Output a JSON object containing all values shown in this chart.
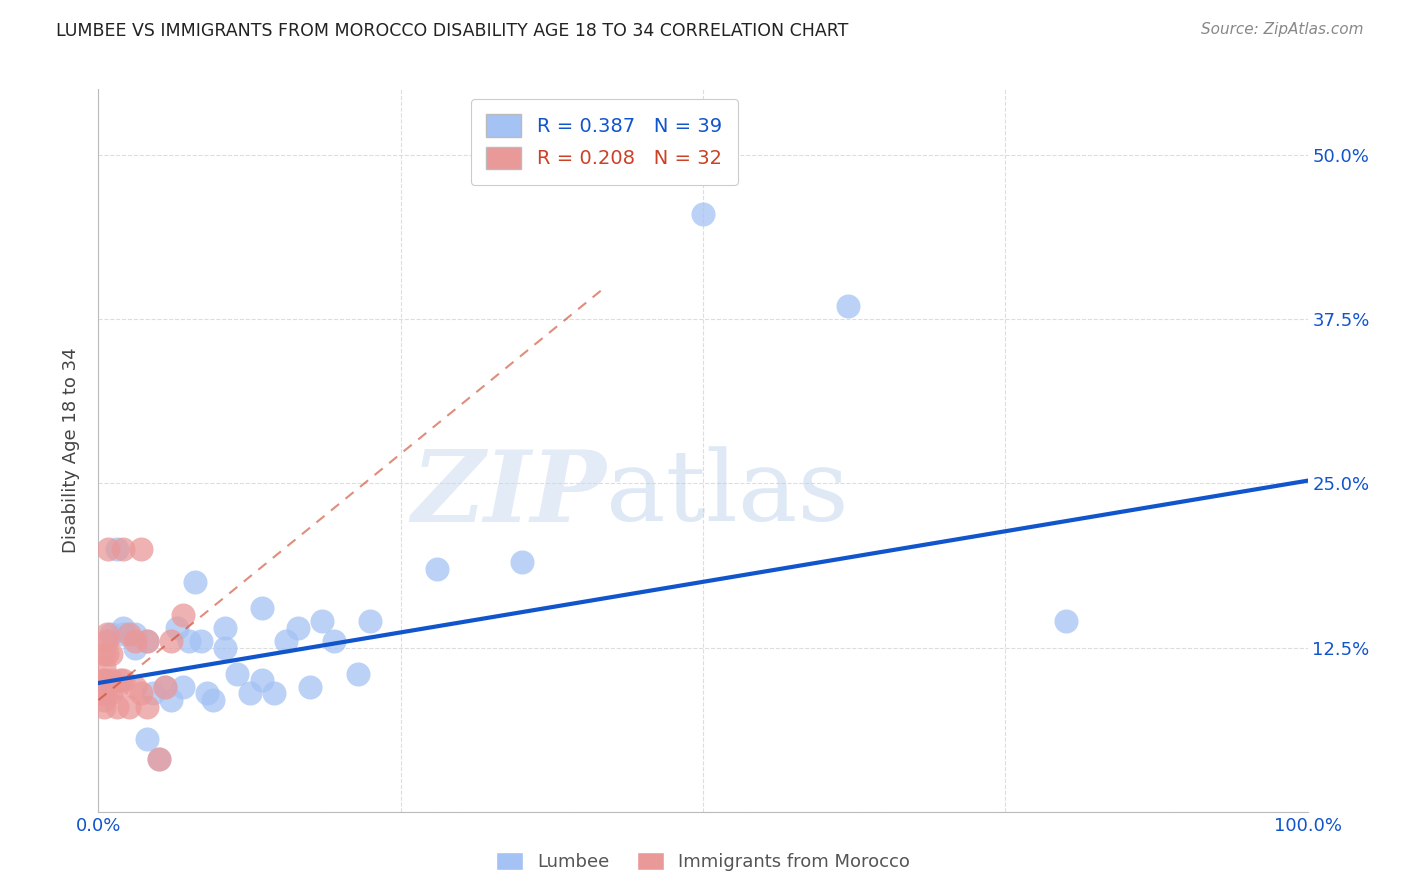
{
  "title": "LUMBEE VS IMMIGRANTS FROM MOROCCO DISABILITY AGE 18 TO 34 CORRELATION CHART",
  "source": "Source: ZipAtlas.com",
  "ylabel": "Disability Age 18 to 34",
  "xlim": [
    0,
    1.0
  ],
  "ylim": [
    0,
    0.55
  ],
  "xticks": [
    0.0,
    0.25,
    0.5,
    0.75,
    1.0
  ],
  "xticklabels": [
    "0.0%",
    "",
    "",
    "",
    "100.0%"
  ],
  "yticks": [
    0.0,
    0.125,
    0.25,
    0.375,
    0.5
  ],
  "yticklabels": [
    "",
    "12.5%",
    "25.0%",
    "37.5%",
    "50.0%"
  ],
  "lumbee_R": 0.387,
  "lumbee_N": 39,
  "morocco_R": 0.208,
  "morocco_N": 32,
  "lumbee_color": "#a4c2f4",
  "morocco_color": "#ea9999",
  "lumbee_line_color": "#1155cc",
  "morocco_line_color": "#cc4125",
  "tick_color": "#1155cc",
  "lumbee_scatter_x": [
    0.5,
    0.62,
    0.8,
    0.35,
    0.28,
    0.225,
    0.215,
    0.195,
    0.185,
    0.175,
    0.165,
    0.155,
    0.145,
    0.135,
    0.135,
    0.125,
    0.115,
    0.105,
    0.105,
    0.095,
    0.09,
    0.085,
    0.08,
    0.075,
    0.07,
    0.065,
    0.06,
    0.055,
    0.05,
    0.045,
    0.04,
    0.04,
    0.03,
    0.03,
    0.02,
    0.02,
    0.015,
    0.01,
    0.005
  ],
  "lumbee_scatter_y": [
    0.455,
    0.385,
    0.145,
    0.19,
    0.185,
    0.145,
    0.105,
    0.13,
    0.145,
    0.095,
    0.14,
    0.13,
    0.09,
    0.1,
    0.155,
    0.09,
    0.105,
    0.14,
    0.125,
    0.085,
    0.09,
    0.13,
    0.175,
    0.13,
    0.095,
    0.14,
    0.085,
    0.095,
    0.04,
    0.09,
    0.055,
    0.13,
    0.135,
    0.125,
    0.135,
    0.14,
    0.2,
    0.135,
    0.09
  ],
  "morocco_scatter_x": [
    0.005,
    0.005,
    0.005,
    0.005,
    0.005,
    0.005,
    0.005,
    0.005,
    0.007,
    0.007,
    0.007,
    0.008,
    0.01,
    0.01,
    0.01,
    0.015,
    0.015,
    0.018,
    0.02,
    0.02,
    0.025,
    0.025,
    0.03,
    0.03,
    0.035,
    0.035,
    0.04,
    0.04,
    0.05,
    0.055,
    0.06,
    0.07
  ],
  "morocco_scatter_y": [
    0.08,
    0.085,
    0.09,
    0.09,
    0.1,
    0.1,
    0.11,
    0.12,
    0.12,
    0.13,
    0.135,
    0.2,
    0.09,
    0.1,
    0.12,
    0.08,
    0.095,
    0.1,
    0.1,
    0.2,
    0.08,
    0.135,
    0.095,
    0.13,
    0.09,
    0.2,
    0.08,
    0.13,
    0.04,
    0.095,
    0.13,
    0.15
  ],
  "lumbee_line_x": [
    0.0,
    1.0
  ],
  "lumbee_line_y": [
    0.098,
    0.252
  ],
  "morocco_line_x": [
    0.0,
    0.42
  ],
  "morocco_line_y": [
    0.085,
    0.4
  ],
  "watermark_zip": "ZIP",
  "watermark_atlas": "atlas",
  "background_color": "#ffffff",
  "grid_color": "#dddddd"
}
